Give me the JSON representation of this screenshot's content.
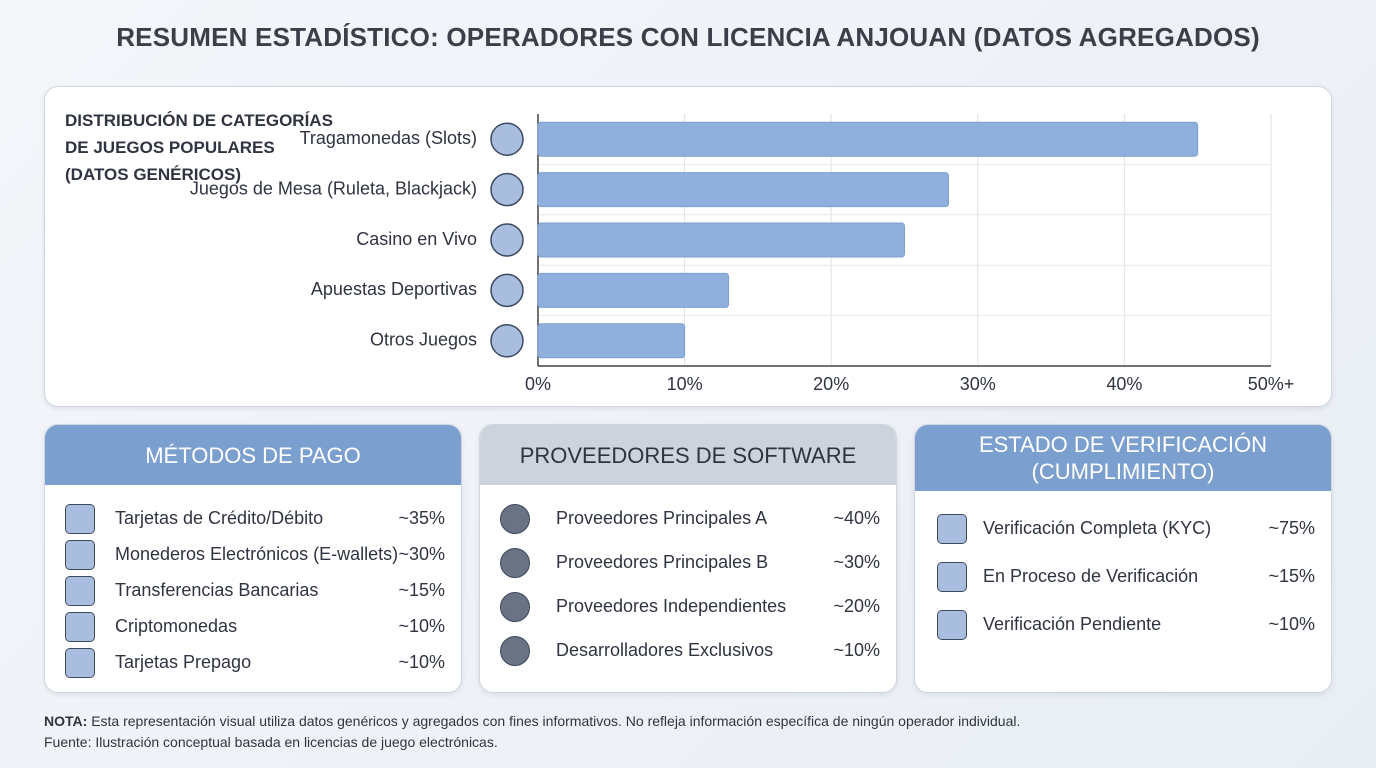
{
  "title": "RESUMEN ESTADÍSTICO: OPERADORES CON LICENCIA ANJOUAN (DATOS AGREGADOS)",
  "chart_data": {
    "type": "bar",
    "orientation": "horizontal",
    "title": "DISTRIBUCIÓN DE CATEGORÍAS DE JUEGOS POPULARES (DATOS GENÉRICOS)",
    "categories": [
      "Tragamonedas (Slots)",
      "Juegos de Mesa (Ruleta, Blackjack)",
      "Casino en Vivo",
      "Apuestas Deportivas",
      "Otros Juegos"
    ],
    "values": [
      45,
      28,
      25,
      13,
      10
    ],
    "color": "#8fb0dc",
    "xlim": [
      0,
      50
    ],
    "xticks": [
      {
        "value": 0,
        "label": "0%"
      },
      {
        "value": 10,
        "label": "10%"
      },
      {
        "value": 20,
        "label": "20%"
      },
      {
        "value": 30,
        "label": "30%"
      },
      {
        "value": 40,
        "label": "40%"
      },
      {
        "value": 50,
        "label": "50%+"
      }
    ],
    "grid": true
  },
  "panels": [
    {
      "title": "MÉTODOS DE PAGO",
      "rows": [
        [
          "Tarjetas de Crédito/Débito",
          "~35%"
        ],
        [
          "Monederos Electrónicos (E-wallets)",
          "~30%"
        ],
        [
          "Transferencias Bancarias",
          "~15%"
        ],
        [
          "Criptomonedas",
          "~10%"
        ],
        [
          "Tarjetas Prepago",
          "~10%"
        ]
      ]
    },
    {
      "title": "PROVEEDORES DE SOFTWARE",
      "rows": [
        [
          "Proveedores Principales A",
          "~40%"
        ],
        [
          "Proveedores Principales B",
          "~30%"
        ],
        [
          "Proveedores Independientes",
          "~20%"
        ],
        [
          "Desarrolladores Exclusivos",
          "~10%"
        ]
      ]
    },
    {
      "title": "ESTADO DE VERIFICACIÓN (CUMPLIMIENTO)",
      "rows": [
        [
          "Verificación Completa (KYC)",
          "~75%"
        ],
        [
          "En Proceso de Verificación",
          "~15%"
        ],
        [
          "Verificación Pendiente",
          "~10%"
        ]
      ]
    }
  ],
  "note": {
    "label": "NOTA:",
    "text": "Esta representación visual utiliza datos genéricos y agregados con fines informativos. No refleja información específica de ningún operador individual.",
    "source": "Fuente: Ilustración conceptual basada en licencias de juego electrónicas."
  }
}
